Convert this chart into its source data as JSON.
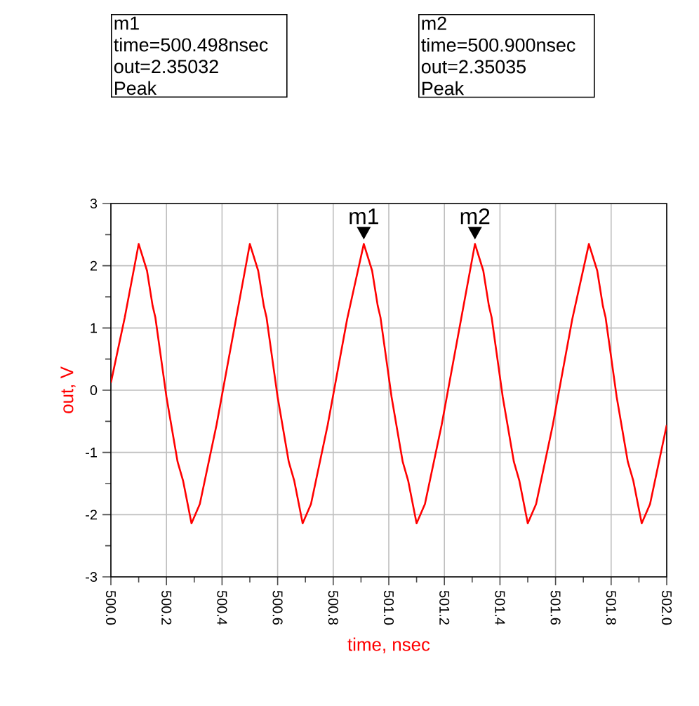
{
  "chart_data": {
    "type": "line",
    "xlabel": "time, nsec",
    "ylabel": "out, V",
    "x": [
      500.0,
      500.05,
      500.1,
      500.13,
      500.15,
      500.16,
      500.2,
      500.24,
      500.26,
      500.29,
      500.32,
      500.38,
      500.45,
      500.5,
      500.53,
      500.55,
      500.56,
      500.6,
      500.64,
      500.66,
      500.69,
      500.72,
      500.78,
      500.85,
      500.91,
      500.94,
      500.96,
      500.97,
      501.01,
      501.05,
      501.07,
      501.1,
      501.13,
      501.19,
      501.26,
      501.31,
      501.34,
      501.36,
      501.37,
      501.41,
      501.45,
      501.47,
      501.5,
      501.53,
      501.59,
      501.66,
      501.72,
      501.75,
      501.77,
      501.78,
      501.82,
      501.86,
      501.88,
      501.91,
      501.94,
      502.0
    ],
    "series": [
      {
        "color": "#ff0000",
        "values": [
          0.12,
          1.17,
          2.35,
          1.92,
          1.36,
          1.17,
          -0.11,
          -1.15,
          -1.46,
          -2.14,
          -1.83,
          -0.56,
          1.14,
          2.35,
          1.92,
          1.36,
          1.17,
          -0.11,
          -1.15,
          -1.46,
          -2.14,
          -1.83,
          -0.56,
          1.14,
          2.35,
          1.92,
          1.36,
          1.17,
          -0.11,
          -1.15,
          -1.46,
          -2.14,
          -1.83,
          -0.56,
          1.14,
          2.35,
          1.92,
          1.36,
          1.17,
          -0.11,
          -1.15,
          -1.46,
          -2.14,
          -1.83,
          -0.56,
          1.14,
          2.35,
          1.92,
          1.36,
          1.17,
          -0.11,
          -1.15,
          -1.46,
          -2.14,
          -1.83,
          -0.56
        ]
      }
    ],
    "xlim": [
      500.0,
      502.0
    ],
    "xticks": [
      {
        "value": 500.0,
        "label": "500.0"
      },
      500.2,
      500.4,
      500.6,
      500.8,
      {
        "value": 501.0,
        "label": "501.0"
      },
      501.2,
      501.4,
      501.6,
      501.8,
      {
        "value": 502.0,
        "label": "502.0"
      }
    ],
    "ylim": [
      -3,
      3
    ],
    "yticks": [
      -3,
      -2,
      -1,
      0,
      1,
      2,
      3
    ],
    "grid": true,
    "legend": false,
    "marker": "none",
    "line_style": "solid",
    "annotations": [
      {
        "text": "m1",
        "x": 500.91,
        "y": 2.35
      },
      {
        "text": "m2",
        "x": 501.31,
        "y": 2.35
      },
      "m1",
      "time=500.498nsec",
      "out=2.35032",
      "Peak",
      "m2",
      "time=500.900nsec",
      "out=2.35035",
      "Peak"
    ]
  }
}
